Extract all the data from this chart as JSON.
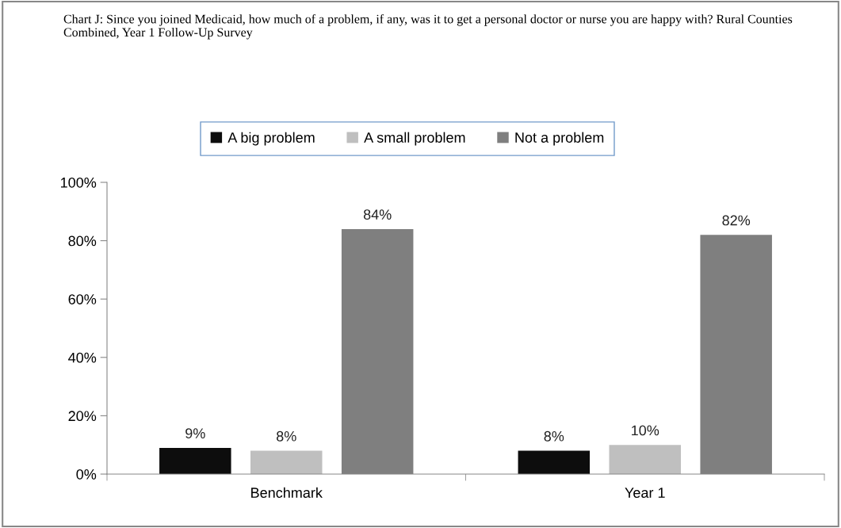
{
  "chart_data": {
    "type": "bar",
    "title": "Chart J: Since you joined Medicaid, how much of a problem, if any, was it to get a personal doctor or nurse you are happy with? Rural Counties Combined, Year 1 Follow-Up Survey",
    "categories": [
      "Benchmark",
      "Year 1"
    ],
    "series": [
      {
        "name": "A big problem",
        "color": "#0d0d0d",
        "values": [
          9,
          8
        ]
      },
      {
        "name": "A small problem",
        "color": "#bfbfbf",
        "values": [
          8,
          10
        ]
      },
      {
        "name": "Not a problem",
        "color": "#7f7f7f",
        "values": [
          84,
          82
        ]
      }
    ],
    "ylim": [
      0,
      100
    ],
    "yticks": [
      {
        "value": 0,
        "label": "0%"
      },
      {
        "value": 20,
        "label": "20%"
      },
      {
        "value": 40,
        "label": "40%"
      },
      {
        "value": 60,
        "label": "60%"
      },
      {
        "value": 80,
        "label": "80%"
      },
      {
        "value": 100,
        "label": "100%"
      }
    ],
    "value_labels": [
      [
        "9%",
        "8%"
      ],
      [
        "8%",
        "10%"
      ],
      [
        "84%",
        "82%"
      ]
    ],
    "legend": "top",
    "grid": false
  }
}
